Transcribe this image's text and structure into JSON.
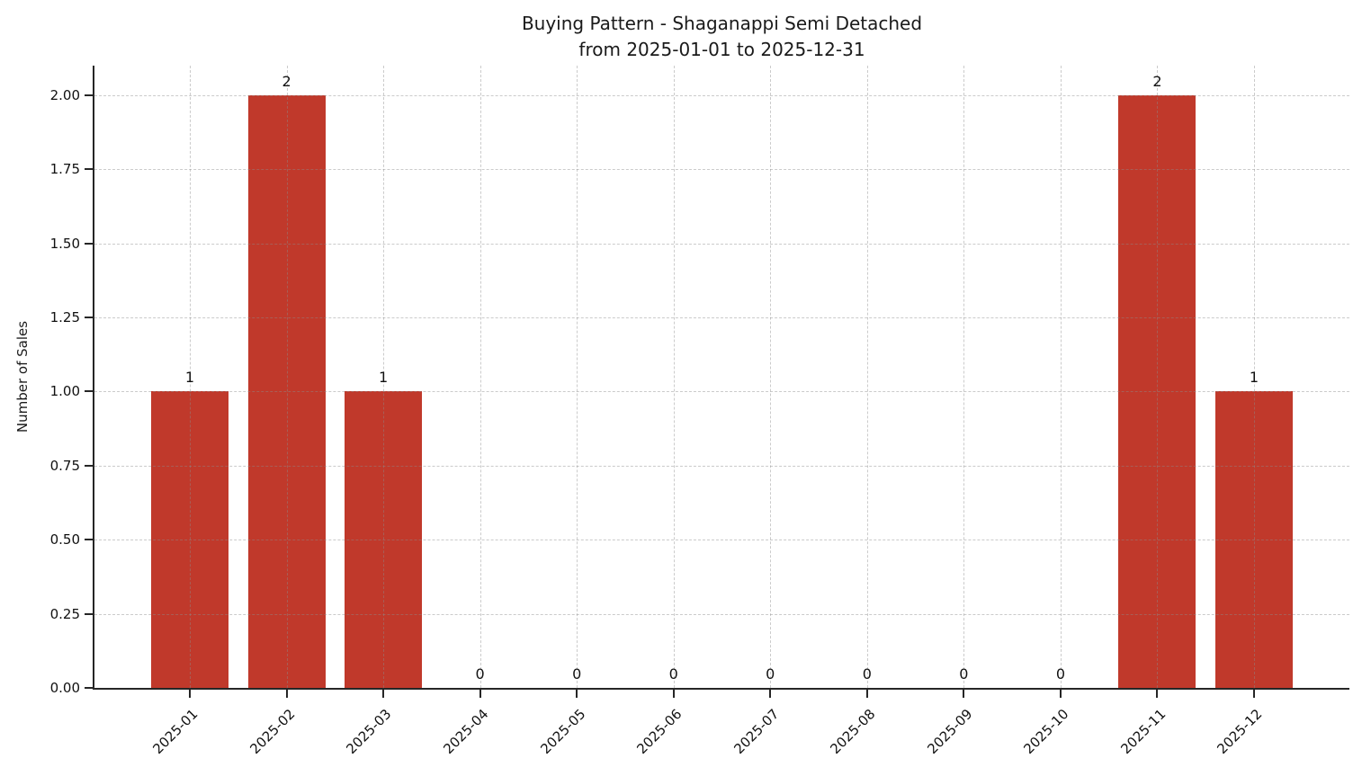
{
  "chart_data": {
    "type": "bar",
    "title": "Buying Pattern - Shaganappi Semi Detached\nfrom 2025-01-01 to 2025-12-31",
    "title_lines": [
      "Buying Pattern - Shaganappi Semi Detached",
      "from 2025-01-01 to 2025-12-31"
    ],
    "xlabel": "",
    "ylabel": "Number of Sales",
    "categories": [
      "2025-01",
      "2025-02",
      "2025-03",
      "2025-04",
      "2025-05",
      "2025-06",
      "2025-07",
      "2025-08",
      "2025-09",
      "2025-10",
      "2025-11",
      "2025-12"
    ],
    "values": [
      1,
      2,
      1,
      0,
      0,
      0,
      0,
      0,
      0,
      0,
      2,
      1
    ],
    "bar_value_labels": [
      "1",
      "2",
      "1",
      "0",
      "0",
      "0",
      "0",
      "0",
      "0",
      "0",
      "2",
      "1"
    ],
    "ylim": [
      0,
      2.1
    ],
    "yticks": [
      0,
      0.25,
      0.5,
      0.75,
      1,
      1.25,
      1.5,
      1.75,
      2
    ],
    "ytick_labels": [
      "0.00",
      "0.25",
      "0.50",
      "0.75",
      "1.00",
      "1.25",
      "1.50",
      "1.75",
      "2.00"
    ],
    "grid": {
      "visible": true,
      "style": "dashed",
      "axes": "both"
    },
    "legend": "none",
    "colors": {
      "bar": "#c0392b",
      "text": "#1a1a1a",
      "spine": "#262626",
      "grid": "#cccccc",
      "background": "#ffffff"
    }
  }
}
